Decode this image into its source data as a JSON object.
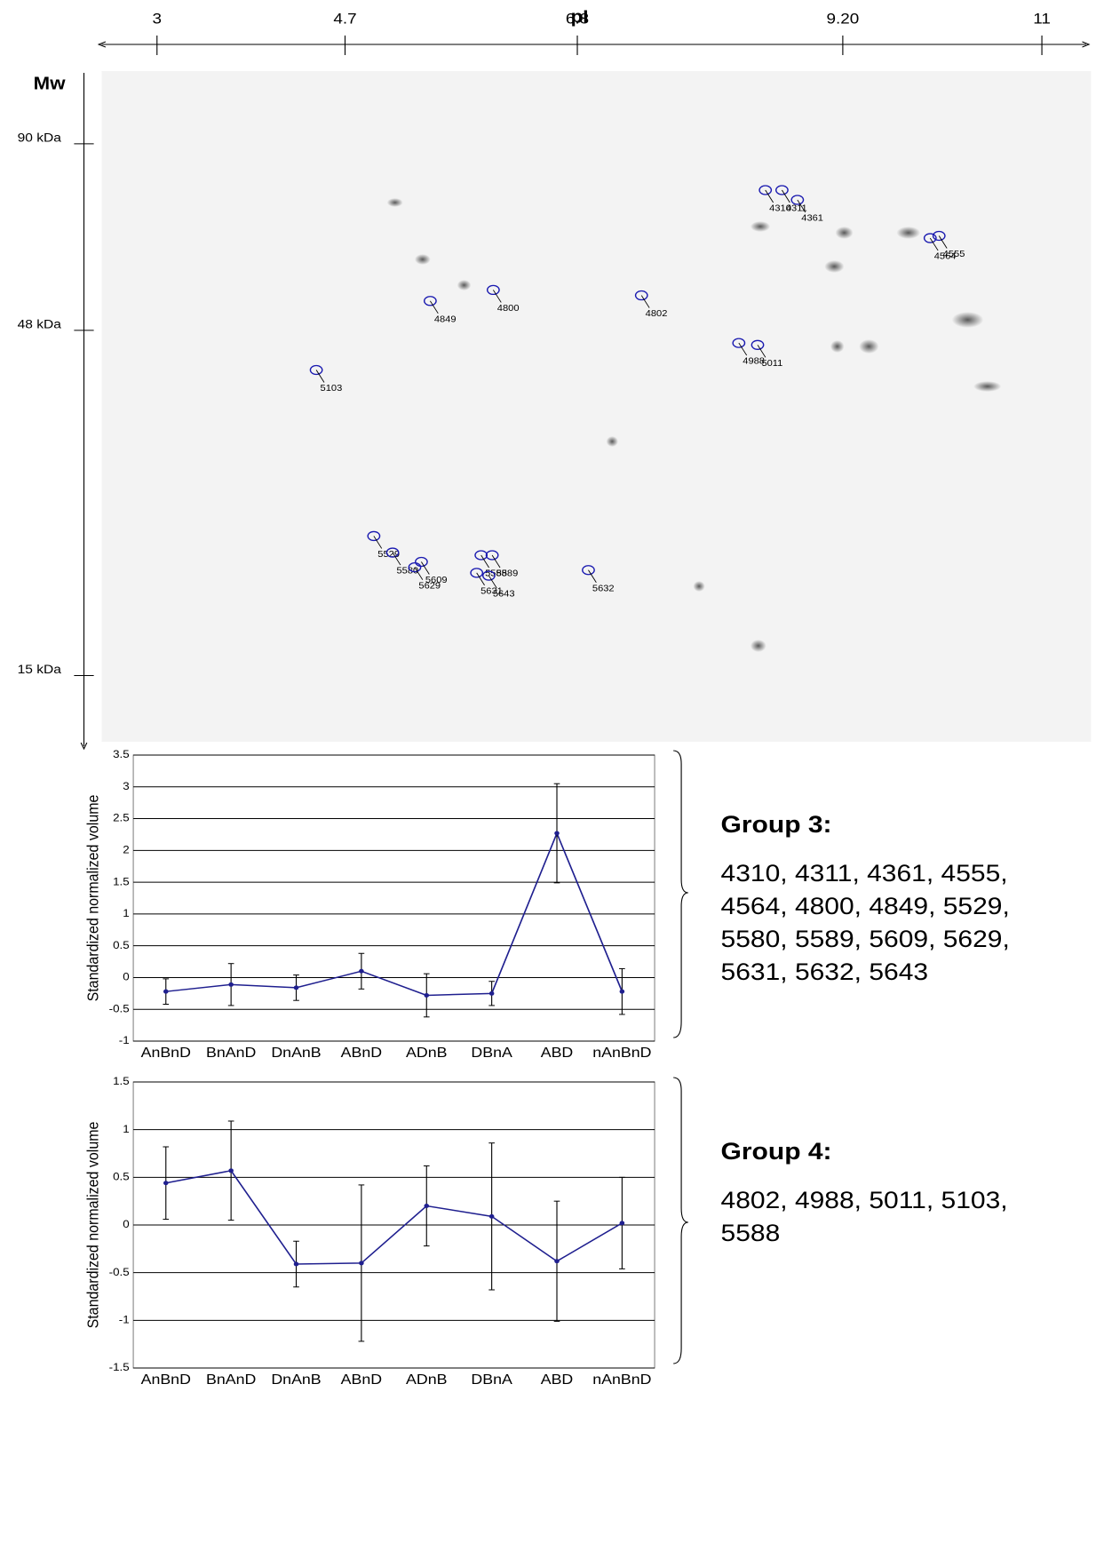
{
  "chart_data": [
    {
      "type": "gel",
      "xlabel": "pI",
      "ylabel": "Mw",
      "xlim": [
        2.5,
        11.4
      ],
      "xticks": [
        3,
        4.7,
        6.8,
        {
          "value": 9.2,
          "label": "9.20"
        },
        11
      ],
      "ylim": [
        115,
        12
      ],
      "log_y": true,
      "yticks": [
        {
          "value": 90,
          "label": "90 kDa"
        },
        {
          "value": 48,
          "label": "48 kDa"
        },
        {
          "value": 15,
          "label": "15 kDa"
        }
      ],
      "color": "#1a1ab0",
      "spots": [
        {
          "label": "4310",
          "x": 8.5,
          "y": 77
        },
        {
          "label": "4311",
          "x": 8.65,
          "y": 77
        },
        {
          "label": "4361",
          "x": 8.79,
          "y": 74.5
        },
        {
          "label": "4555",
          "x": 10.07,
          "y": 66
        },
        {
          "label": "4564",
          "x": 9.99,
          "y": 65.5
        },
        {
          "label": "4800",
          "x": 6.04,
          "y": 55
        },
        {
          "label": "4849",
          "x": 5.47,
          "y": 53
        },
        {
          "label": "4802",
          "x": 7.38,
          "y": 54
        },
        {
          "label": "4988",
          "x": 8.26,
          "y": 46
        },
        {
          "label": "5011",
          "x": 8.43,
          "y": 45.7
        },
        {
          "label": "5103",
          "x": 4.44,
          "y": 42
        },
        {
          "label": "5529",
          "x": 4.96,
          "y": 24
        },
        {
          "label": "5580",
          "x": 5.13,
          "y": 22.7
        },
        {
          "label": "5609",
          "x": 5.39,
          "y": 22
        },
        {
          "label": "5588",
          "x": 5.93,
          "y": 22.5
        },
        {
          "label": "5589",
          "x": 6.03,
          "y": 22.5
        },
        {
          "label": "5629",
          "x": 5.33,
          "y": 21.6
        },
        {
          "label": "5631",
          "x": 5.89,
          "y": 21.2
        },
        {
          "label": "5643",
          "x": 6.0,
          "y": 21
        },
        {
          "label": "5632",
          "x": 6.9,
          "y": 21.4
        }
      ]
    },
    {
      "type": "line",
      "ylabel": "Standardized normalized volume",
      "categories": [
        "AnBnD",
        "BnAnD",
        "DnAnB",
        "ABnD",
        "ADnB",
        "DBnA",
        "ABD",
        "nAnBnD"
      ],
      "ylim": [
        -1,
        3.5
      ],
      "yticks": [
        -1,
        -0.5,
        0,
        0.5,
        1,
        1.5,
        2,
        2.5,
        3,
        3.5
      ],
      "grid": true,
      "series": [
        {
          "color": "#1f1f8f",
          "values": [
            -0.22,
            -0.11,
            -0.16,
            0.1,
            -0.28,
            -0.25,
            2.27,
            -0.22
          ],
          "errors": [
            0.2,
            0.33,
            0.2,
            0.28,
            0.34,
            0.19,
            0.78,
            0.36
          ]
        }
      ],
      "group_title": "Group 3:",
      "group_members": [
        "4310, 4311, 4361, 4555,",
        "4564, 4800, 4849, 5529,",
        "5580, 5589, 5609, 5629,",
        "5631, 5632, 5643"
      ]
    },
    {
      "type": "line",
      "ylabel": "Standardized normalized volume",
      "categories": [
        "AnBnD",
        "BnAnD",
        "DnAnB",
        "ABnD",
        "ADnB",
        "DBnA",
        "ABD",
        "nAnBnD"
      ],
      "ylim": [
        -1.5,
        1.5
      ],
      "yticks": [
        -1.5,
        -1,
        -0.5,
        0,
        0.5,
        1,
        1.5
      ],
      "grid": true,
      "series": [
        {
          "color": "#1f1f8f",
          "values": [
            0.44,
            0.57,
            -0.41,
            -0.4,
            0.2,
            0.09,
            -0.38,
            0.02
          ],
          "errors": [
            0.38,
            0.52,
            0.24,
            0.82,
            0.42,
            0.77,
            0.63,
            0.48
          ]
        }
      ],
      "group_title": "Group 4:",
      "group_members": [
        "4802, 4988, 5011, 5103,",
        "5588"
      ]
    }
  ]
}
